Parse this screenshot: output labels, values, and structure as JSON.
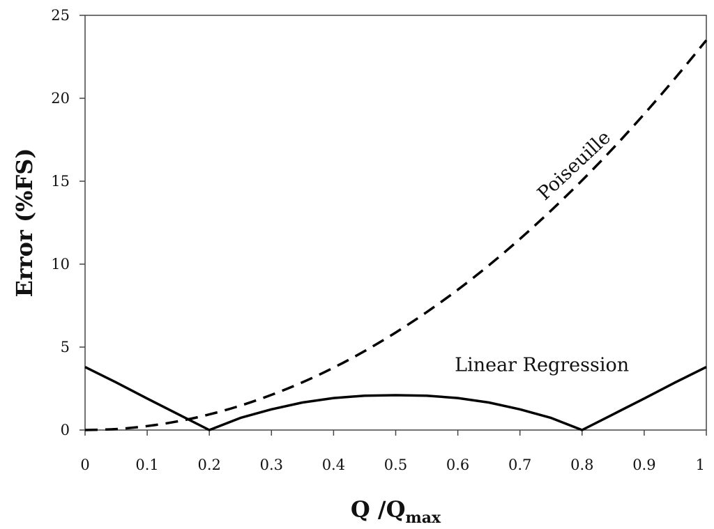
{
  "chart_data": {
    "type": "line",
    "title": "",
    "xlabel": "Q /Q",
    "xlabel_sub": "max",
    "ylabel": "Error (%FS)",
    "xlim": [
      0,
      1
    ],
    "ylim": [
      0,
      25
    ],
    "x_ticks": [
      "0",
      "0.1",
      "0.2",
      "0.3",
      "0.4",
      "0.5",
      "0.6",
      "0.7",
      "0.8",
      "0.9",
      "1"
    ],
    "y_ticks": [
      "0",
      "5",
      "10",
      "15",
      "20",
      "25"
    ],
    "grid": false,
    "series": [
      {
        "name": "Poiseuille",
        "style": "dashed",
        "color": "#000000",
        "x": [
          0,
          0.05,
          0.1,
          0.15,
          0.2,
          0.25,
          0.3,
          0.35,
          0.4,
          0.45,
          0.5,
          0.55,
          0.6,
          0.65,
          0.7,
          0.75,
          0.8,
          0.85,
          0.9,
          0.95,
          1
        ],
        "y": [
          0,
          0.06,
          0.24,
          0.53,
          0.94,
          1.47,
          2.12,
          2.88,
          3.76,
          4.76,
          5.88,
          7.11,
          8.46,
          9.93,
          11.52,
          13.23,
          15.05,
          16.99,
          19.05,
          21.22,
          23.5
        ]
      },
      {
        "name": "Linear Regression",
        "style": "solid",
        "color": "#000000",
        "x": [
          0,
          0.05,
          0.1,
          0.15,
          0.2,
          0.25,
          0.3,
          0.35,
          0.4,
          0.45,
          0.5,
          0.55,
          0.6,
          0.65,
          0.7,
          0.75,
          0.8,
          0.85,
          0.9,
          0.95,
          1
        ],
        "y": [
          3.8,
          2.87,
          1.9,
          0.95,
          0,
          0.73,
          1.25,
          1.66,
          1.93,
          2.07,
          2.1,
          2.07,
          1.93,
          1.66,
          1.25,
          0.73,
          0,
          0.95,
          1.9,
          2.87,
          3.8
        ]
      }
    ]
  }
}
